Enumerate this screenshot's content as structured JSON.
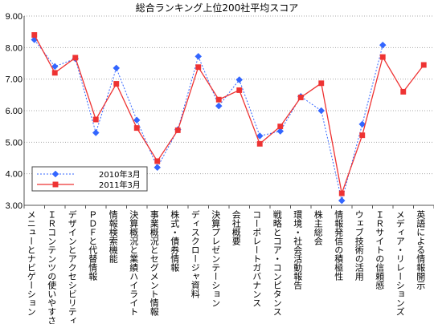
{
  "chart_data": {
    "type": "line",
    "title": "総合ランキング上位200社平均スコア",
    "xlabel": "",
    "ylabel": "",
    "ylim": [
      3.0,
      9.0
    ],
    "y_ticks": [
      "3.00",
      "4.00",
      "5.00",
      "6.00",
      "7.00",
      "8.00",
      "9.00"
    ],
    "grid": true,
    "legend_position": "bottom-left",
    "categories": [
      "メニューとナビゲーション",
      "ＩＲコンテンツの使いやすさ",
      "デザインとアクセシビリティ",
      "ＰＤＦと代替情報",
      "情報検索機能",
      "決算概況と業績ハイライト",
      "事業概況とセグメント情報",
      "株式・債券情報",
      "ディスクロージャ資料",
      "決算プレゼンテーション",
      "会社概要",
      "コーポレートガバナンス",
      "戦略とコア・コンピタンス",
      "環境・社会活動報告",
      "株主総会",
      "情報発信の積極性",
      "ウェブ技術の活用",
      "ＩＲサイトの信頼感",
      "メディア・リレーションズ",
      "英語による情報開示"
    ],
    "series": [
      {
        "name": "2010年3月",
        "color": "#3366ff",
        "marker": "diamond",
        "dashed": true,
        "values": [
          8.25,
          7.4,
          7.65,
          5.3,
          7.35,
          5.7,
          4.2,
          5.4,
          7.72,
          6.15,
          6.98,
          5.2,
          5.35,
          6.45,
          6.0,
          3.15,
          5.57,
          8.08,
          null,
          null
        ]
      },
      {
        "name": "2011年3月",
        "color": "#ee3333",
        "marker": "square",
        "dashed": false,
        "values": [
          8.4,
          7.2,
          7.68,
          5.72,
          6.85,
          5.45,
          4.4,
          5.38,
          7.38,
          6.35,
          6.65,
          4.95,
          5.5,
          6.42,
          6.87,
          3.38,
          5.22,
          7.7,
          6.6,
          7.45
        ]
      }
    ]
  }
}
